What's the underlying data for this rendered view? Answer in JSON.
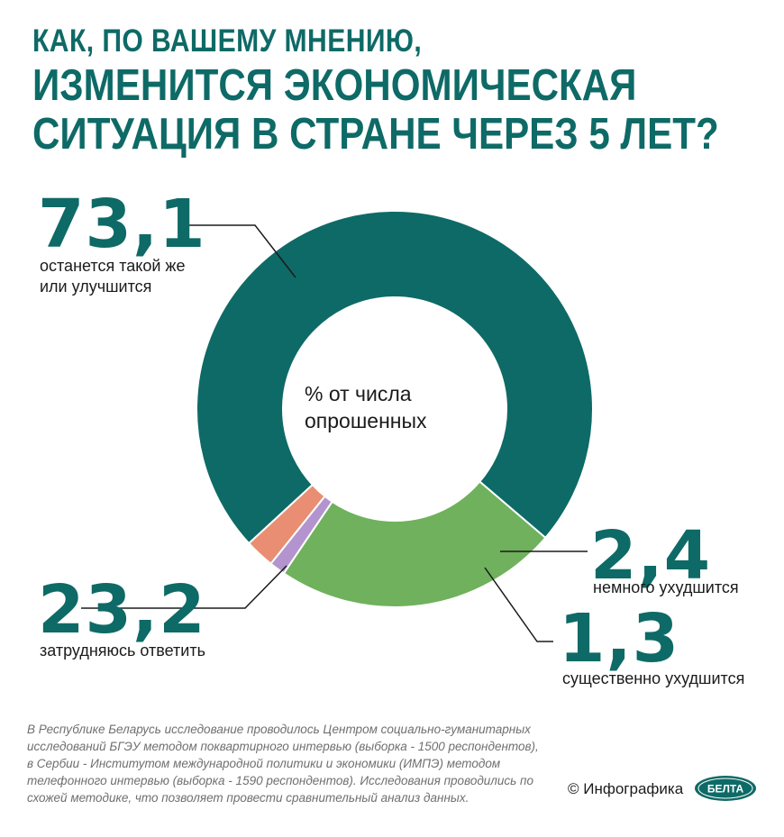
{
  "title": {
    "line1": "КАК, ПО ВАШЕМУ МНЕНИЮ,",
    "line2": "ИЗМЕНИТСЯ ЭКОНОМИЧЕСКАЯ",
    "line3": "СИТУАЦИЯ В СТРАНЕ ЧЕРЕЗ 5 ЛЕТ?"
  },
  "center_label": {
    "line1": "% от числа",
    "line2": "опрошенных"
  },
  "labels": {
    "stay": {
      "value": "73,1",
      "text1": "останется такой же",
      "text2": "или улучшится"
    },
    "hard": {
      "value": "23,2",
      "text": "затрудняюсь ответить"
    },
    "slight": {
      "value": "2,4",
      "text": "немного ухудшится"
    },
    "severe": {
      "value": "1,3",
      "text": "существенно ухудшится"
    }
  },
  "footnote": [
    "В Республике Беларусь исследование проводилось Центром социально-гуманитарных",
    "исследований БГЭУ методом поквартирного интервью (выборка - 1500 респондентов),",
    "в Сербии - Институтом международной политики и экономики (ИМПЭ) методом",
    "телефонного интервью (выборка - 1590 респондентов). Исследования проводились по",
    "схожей методике, что позволяет провести сравнительный анализ данных."
  ],
  "credit": "© Инфографика",
  "logo_text": "БЕЛТА",
  "colors": {
    "primary": "#0e6a66",
    "green": "#6fb15c",
    "salmon": "#e98e72",
    "lavender": "#b394cf"
  },
  "chart_data": {
    "type": "pie",
    "donut": true,
    "categories": [
      "останется такой же или улучшится",
      "затрудняюсь ответить",
      "существенно ухудшится",
      "немного ухудшится"
    ],
    "values": [
      73.1,
      23.2,
      1.3,
      2.4
    ],
    "unit": "% от числа опрошенных"
  }
}
